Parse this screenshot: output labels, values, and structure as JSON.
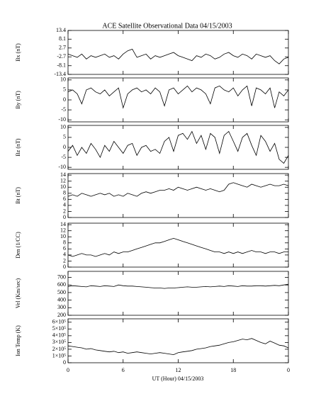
{
  "chart_data": [
    {
      "type": "line",
      "title": "ACE Satellite Observational Data  04/15/2003",
      "ylabel": "Bx (nT)",
      "color": "#000000",
      "ylim": [
        -13.4,
        13.4
      ],
      "yticks": [
        -13.4,
        -8.1,
        -2.7,
        2.7,
        8.1,
        13.4
      ],
      "x": [
        0,
        0.5,
        1,
        1.5,
        2,
        2.5,
        3,
        3.5,
        4,
        4.5,
        5,
        5.5,
        6,
        6.5,
        7,
        7.5,
        8,
        8.5,
        9,
        9.5,
        10,
        10.5,
        11,
        11.5,
        12,
        12.5,
        13,
        13.5,
        14,
        14.5,
        15,
        15.5,
        16,
        16.5,
        17,
        17.5,
        18,
        18.5,
        19,
        19.5,
        20,
        20.5,
        21,
        21.5,
        22,
        22.5,
        23,
        23.5,
        24
      ],
      "values": [
        -1,
        -2,
        -3,
        -1,
        -4,
        -2,
        -3,
        -2,
        -1,
        -3,
        -2,
        -4,
        -1,
        1,
        2,
        -3,
        -2,
        -1,
        -4,
        -2,
        -3,
        -2,
        -1,
        0,
        -2,
        -3,
        -4,
        -5,
        -2,
        -3,
        -1,
        -2,
        -4,
        -3,
        -1,
        0,
        -2,
        -3,
        -1,
        -2,
        -4,
        -1,
        -2,
        -3,
        -2,
        -5,
        -7,
        -4,
        -3
      ]
    },
    {
      "type": "line",
      "ylabel": "By (nT)",
      "color": "#000000",
      "ylim": [
        -11,
        11
      ],
      "yticks": [
        -10,
        -5,
        0,
        5,
        10
      ],
      "x": [
        0,
        0.5,
        1,
        1.5,
        2,
        2.5,
        3,
        3.5,
        4,
        4.5,
        5,
        5.5,
        6,
        6.5,
        7,
        7.5,
        8,
        8.5,
        9,
        9.5,
        10,
        10.5,
        11,
        11.5,
        12,
        12.5,
        13,
        13.5,
        14,
        14.5,
        15,
        15.5,
        16,
        16.5,
        17,
        17.5,
        18,
        18.5,
        19,
        19.5,
        20,
        20.5,
        21,
        21.5,
        22,
        22.5,
        23,
        23.5,
        24
      ],
      "values": [
        4,
        5,
        3,
        -2,
        5,
        6,
        4,
        3,
        5,
        2,
        4,
        6,
        -4,
        3,
        5,
        6,
        4,
        5,
        3,
        6,
        4,
        -3,
        5,
        6,
        3,
        5,
        7,
        4,
        6,
        5,
        3,
        -2,
        6,
        7,
        5,
        4,
        6,
        2,
        5,
        7,
        -3,
        6,
        5,
        3,
        6,
        -4,
        4,
        2,
        5
      ]
    },
    {
      "type": "line",
      "ylabel": "Bz (nT)",
      "color": "#000000",
      "ylim": [
        -11,
        11
      ],
      "yticks": [
        -10,
        -5,
        0,
        5,
        10
      ],
      "x": [
        0,
        0.5,
        1,
        1.5,
        2,
        2.5,
        3,
        3.5,
        4,
        4.5,
        5,
        5.5,
        6,
        6.5,
        7,
        7.5,
        8,
        8.5,
        9,
        9.5,
        10,
        10.5,
        11,
        11.5,
        12,
        12.5,
        13,
        13.5,
        14,
        14.5,
        15,
        15.5,
        16,
        16.5,
        17,
        17.5,
        18,
        18.5,
        19,
        19.5,
        20,
        20.5,
        21,
        21.5,
        22,
        22.5,
        23,
        23.5,
        24
      ],
      "values": [
        -2,
        1,
        -4,
        0,
        -3,
        2,
        -1,
        -5,
        1,
        -2,
        3,
        0,
        -3,
        1,
        2,
        -4,
        0,
        1,
        -2,
        -1,
        -3,
        3,
        5,
        -2,
        6,
        7,
        4,
        8,
        2,
        6,
        -1,
        7,
        5,
        -3,
        6,
        8,
        3,
        -2,
        5,
        7,
        1,
        -4,
        6,
        3,
        -2,
        2,
        -6,
        -8,
        -4
      ]
    },
    {
      "type": "line",
      "ylabel": "Bt (nT)",
      "color": "#000000",
      "ylim": [
        0,
        14.5
      ],
      "yticks": [
        0,
        2,
        4,
        6,
        8,
        10,
        12,
        14
      ],
      "x": [
        0,
        0.5,
        1,
        1.5,
        2,
        2.5,
        3,
        3.5,
        4,
        4.5,
        5,
        5.5,
        6,
        6.5,
        7,
        7.5,
        8,
        8.5,
        9,
        9.5,
        10,
        10.5,
        11,
        11.5,
        12,
        12.5,
        13,
        13.5,
        14,
        14.5,
        15,
        15.5,
        16,
        16.5,
        17,
        17.5,
        18,
        18.5,
        19,
        19.5,
        20,
        20.5,
        21,
        21.5,
        22,
        22.5,
        23,
        23.5,
        24
      ],
      "values": [
        7,
        7.5,
        7,
        8,
        7.5,
        7,
        7.5,
        8,
        7.5,
        8,
        7,
        7.5,
        7,
        8,
        7.5,
        7,
        8,
        8.5,
        8,
        8.5,
        9,
        9,
        9.5,
        9,
        10,
        9.5,
        9,
        9.5,
        10,
        9.5,
        9,
        9.5,
        9,
        8.5,
        9,
        11,
        11.5,
        11,
        10.5,
        10,
        11,
        10.5,
        10,
        10.5,
        11,
        10.5,
        10.5,
        11,
        10.5
      ]
    },
    {
      "type": "line",
      "ylabel": "Den (1/CC)",
      "color": "#000000",
      "ylim": [
        0,
        14.5
      ],
      "yticks": [
        0,
        2,
        4,
        6,
        8,
        10,
        12,
        14
      ],
      "x": [
        0,
        0.5,
        1,
        1.5,
        2,
        2.5,
        3,
        3.5,
        4,
        4.5,
        5,
        5.5,
        6,
        6.5,
        7,
        7.5,
        8,
        8.5,
        9,
        9.5,
        10,
        10.5,
        11,
        11.5,
        12,
        12.5,
        13,
        13.5,
        14,
        14.5,
        15,
        15.5,
        16,
        16.5,
        17,
        17.5,
        18,
        18.5,
        19,
        19.5,
        20,
        20.5,
        21,
        21.5,
        22,
        22.5,
        23,
        23.5,
        24
      ],
      "values": [
        4,
        3.5,
        4,
        4.5,
        4,
        4,
        3.5,
        4,
        4.5,
        4,
        5,
        4.5,
        5,
        5,
        5.5,
        6,
        6.5,
        7,
        7.5,
        8,
        8,
        8.5,
        9,
        9.5,
        9,
        8.5,
        8,
        7.5,
        7,
        6.5,
        6,
        5.5,
        5,
        5,
        4.5,
        5,
        4.5,
        5,
        4.5,
        5,
        5.5,
        5,
        5,
        4.5,
        5,
        5,
        4.5,
        5,
        5
      ]
    },
    {
      "type": "line",
      "ylabel": "Vel (Km/sec)",
      "color": "#000000",
      "ylim": [
        200,
        780
      ],
      "yticks": [
        200,
        300,
        400,
        500,
        600,
        700
      ],
      "x": [
        0,
        0.5,
        1,
        1.5,
        2,
        2.5,
        3,
        3.5,
        4,
        4.5,
        5,
        5.5,
        6,
        6.5,
        7,
        7.5,
        8,
        8.5,
        9,
        9.5,
        10,
        10.5,
        11,
        11.5,
        12,
        12.5,
        13,
        13.5,
        14,
        14.5,
        15,
        15.5,
        16,
        16.5,
        17,
        17.5,
        18,
        18.5,
        19,
        19.5,
        20,
        20.5,
        21,
        21.5,
        22,
        22.5,
        23,
        23.5,
        24
      ],
      "values": [
        580,
        590,
        585,
        580,
        575,
        590,
        585,
        580,
        590,
        585,
        580,
        600,
        590,
        585,
        585,
        580,
        575,
        570,
        565,
        560,
        560,
        555,
        560,
        560,
        565,
        570,
        575,
        570,
        570,
        575,
        580,
        575,
        580,
        585,
        580,
        590,
        585,
        580,
        590,
        585,
        585,
        590,
        590,
        585,
        590,
        595,
        590,
        600,
        610
      ]
    },
    {
      "type": "line",
      "ylabel": "Ion Temp (K)",
      "xlabel": "UT (Hour)  04/15/2003",
      "color": "#000000",
      "xlim": [
        0,
        24
      ],
      "xticks": [
        0,
        6,
        12,
        18,
        {
          "value": 24,
          "label": "0"
        }
      ],
      "ylim": [
        0,
        650000
      ],
      "yticks": [
        0,
        {
          "value": 100000,
          "label": "1×10⁵"
        },
        {
          "value": 200000,
          "label": "2×10⁵"
        },
        {
          "value": 300000,
          "label": "3×10⁵"
        },
        {
          "value": 400000,
          "label": "4×10⁵"
        },
        {
          "value": 500000,
          "label": "5×10⁵"
        },
        {
          "value": 600000,
          "label": "6×10⁵"
        }
      ],
      "x": [
        0,
        0.5,
        1,
        1.5,
        2,
        2.5,
        3,
        3.5,
        4,
        4.5,
        5,
        5.5,
        6,
        6.5,
        7,
        7.5,
        8,
        8.5,
        9,
        9.5,
        10,
        10.5,
        11,
        11.5,
        12,
        12.5,
        13,
        13.5,
        14,
        14.5,
        15,
        15.5,
        16,
        16.5,
        17,
        17.5,
        18,
        18.5,
        19,
        19.5,
        20,
        20.5,
        21,
        21.5,
        22,
        22.5,
        23,
        23.5,
        24
      ],
      "values": [
        250000,
        240000,
        230000,
        220000,
        200000,
        210000,
        190000,
        180000,
        170000,
        160000,
        170000,
        150000,
        160000,
        140000,
        150000,
        160000,
        150000,
        140000,
        130000,
        140000,
        150000,
        140000,
        130000,
        120000,
        150000,
        160000,
        170000,
        180000,
        200000,
        210000,
        220000,
        240000,
        250000,
        260000,
        280000,
        300000,
        310000,
        330000,
        350000,
        340000,
        360000,
        330000,
        300000,
        280000,
        320000,
        290000,
        260000,
        250000,
        220000
      ]
    }
  ]
}
